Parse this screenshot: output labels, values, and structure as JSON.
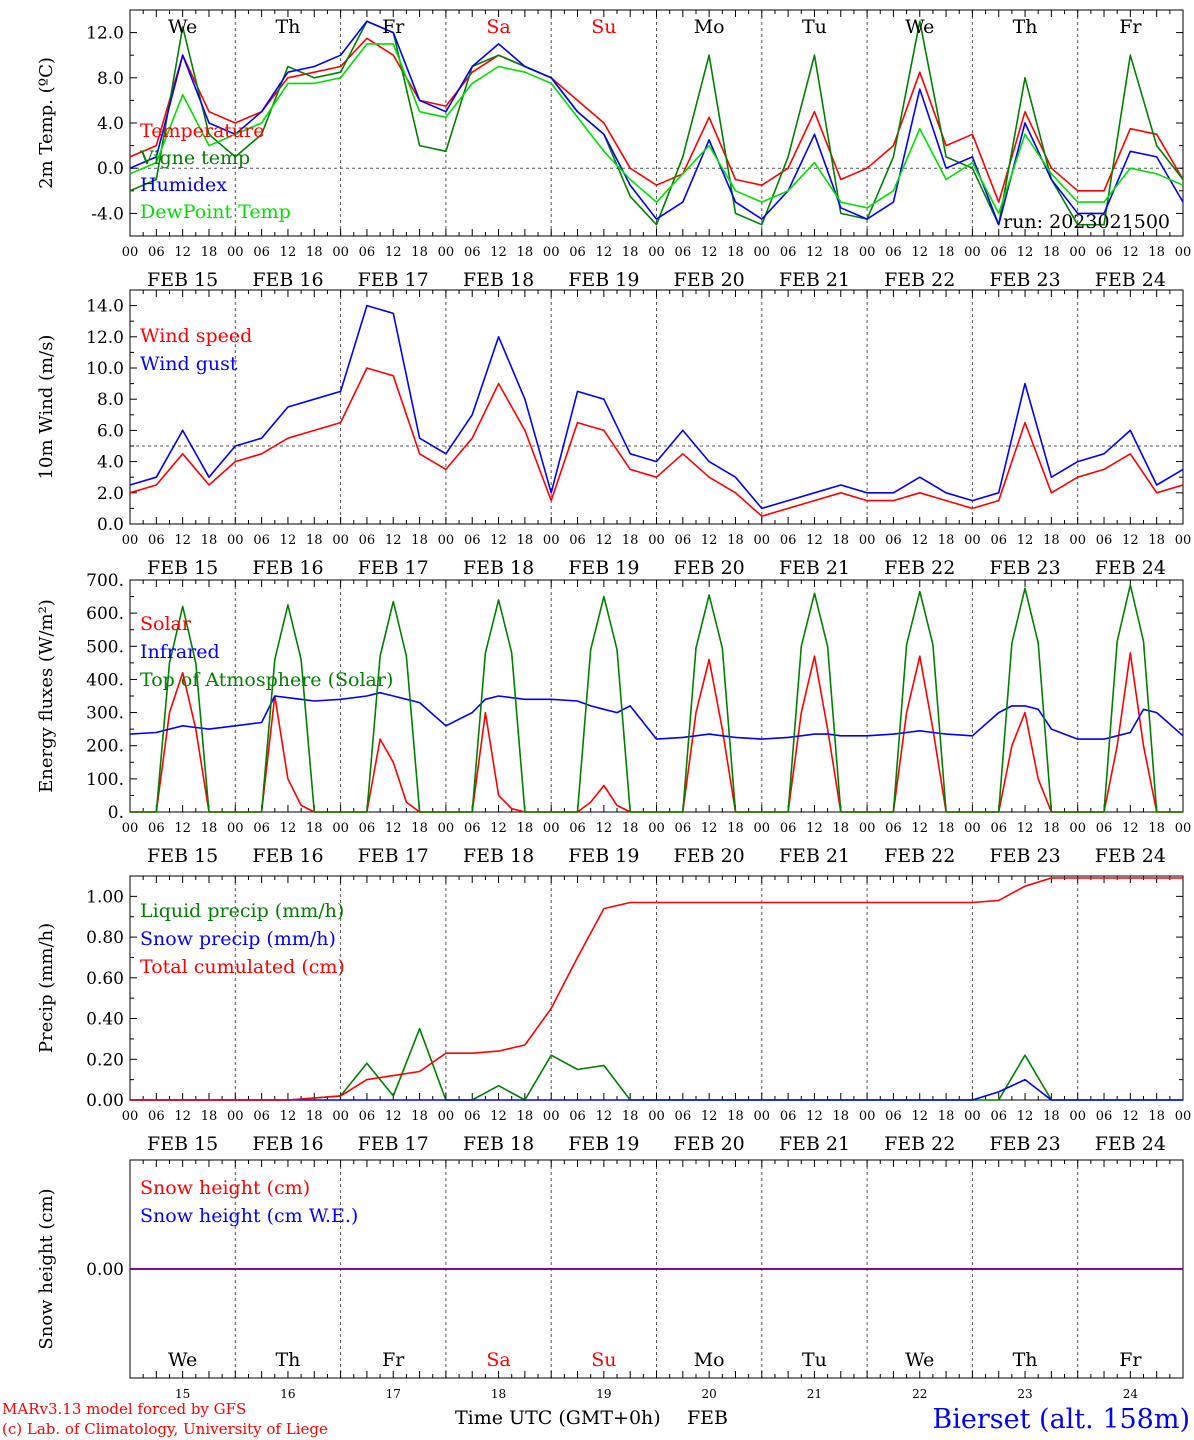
{
  "station": "Bierset (alt. 158m)",
  "run_label": "run: 2023021500",
  "footer": {
    "line1": "MARv3.13 model forced by GFS",
    "line2": "(c) Lab. of Climatology, University of Liege",
    "axis_title": "Time UTC (GMT+0h)",
    "month": "FEB"
  },
  "days": [
    {
      "date": "FEB 15",
      "num": "15",
      "dow": "We",
      "weekend": false
    },
    {
      "date": "FEB 16",
      "num": "16",
      "dow": "Th",
      "weekend": false
    },
    {
      "date": "FEB 17",
      "num": "17",
      "dow": "Fr",
      "weekend": false
    },
    {
      "date": "FEB 18",
      "num": "18",
      "dow": "Sa",
      "weekend": true
    },
    {
      "date": "FEB 19",
      "num": "19",
      "dow": "Su",
      "weekend": true
    },
    {
      "date": "FEB 20",
      "num": "20",
      "dow": "Mo",
      "weekend": false
    },
    {
      "date": "FEB 21",
      "num": "21",
      "dow": "Tu",
      "weekend": false
    },
    {
      "date": "FEB 22",
      "num": "22",
      "dow": "We",
      "weekend": false
    },
    {
      "date": "FEB 23",
      "num": "23",
      "dow": "Th",
      "weekend": false
    },
    {
      "date": "FEB 24",
      "num": "24",
      "dow": "Fr",
      "weekend": false
    }
  ],
  "hour_ticks": [
    "00",
    "06",
    "12",
    "18"
  ],
  "end_hour_tick": "00",
  "colors": {
    "red": "#ff0000",
    "green": "#008000",
    "blue": "#0000ff",
    "lightgreen": "#00e000",
    "purple": "#800080",
    "weekend": "#ff0000",
    "station": "#0000ff"
  },
  "chart_data": [
    {
      "type": "line",
      "ylabel": "2m Temp. (ºC)",
      "ylim": [
        -6,
        14
      ],
      "yticks": [
        -4,
        0,
        4,
        8,
        12
      ],
      "ytick_labels": [
        "-4.0",
        "0.0",
        "4.0",
        "8.0",
        "12.0"
      ],
      "ref_line": 0,
      "legend_placement": "left",
      "x": [
        0,
        6,
        12,
        18,
        24,
        30,
        36,
        42,
        48,
        54,
        60,
        66,
        72,
        78,
        84,
        90,
        96,
        102,
        108,
        114,
        120,
        126,
        132,
        138,
        144,
        150,
        156,
        162,
        168,
        174,
        180,
        186,
        192,
        198,
        204,
        210,
        216,
        222,
        228,
        234,
        240
      ],
      "series": [
        {
          "name": "Temperature",
          "color": "red",
          "values": [
            1,
            2,
            10,
            5,
            4,
            5,
            8,
            8.5,
            9,
            11.5,
            10,
            6,
            5.5,
            8.5,
            10,
            9,
            8,
            6,
            4,
            0,
            -1.5,
            -0.5,
            4.5,
            -1,
            -1.5,
            0,
            5,
            -1,
            0,
            2,
            8.5,
            2,
            3,
            -3,
            5,
            0,
            -2,
            -2,
            3.5,
            3,
            -1
          ]
        },
        {
          "name": "Vigne temp",
          "color": "green",
          "values": [
            -2,
            -1,
            12.5,
            3,
            1,
            3,
            9,
            8,
            8.5,
            13,
            12,
            2,
            1.5,
            9,
            10,
            9,
            8,
            5,
            3,
            -2.5,
            -5,
            1,
            10,
            -4,
            -5,
            1,
            10,
            -4,
            -4.5,
            1,
            13,
            1,
            0,
            -5,
            8,
            -1,
            -5,
            -5,
            10,
            2,
            -1
          ]
        },
        {
          "name": "Humidex",
          "color": "blue",
          "values": [
            0,
            1,
            10,
            4,
            3,
            5,
            8.5,
            9,
            10,
            13,
            12,
            6,
            5,
            9,
            11,
            9,
            8,
            5,
            3,
            -1.5,
            -4.5,
            -3,
            2.5,
            -3,
            -4.5,
            -2,
            3,
            -3.5,
            -4.5,
            -3,
            7,
            0,
            1,
            -5,
            4,
            -1,
            -4,
            -4,
            1.5,
            1,
            -3
          ]
        },
        {
          "name": "DewPoint Temp",
          "color": "lightgreen",
          "values": [
            -0.5,
            0.5,
            6.5,
            2,
            3,
            4,
            7.5,
            7.5,
            8,
            11,
            11,
            5,
            4.5,
            7.5,
            9,
            8.5,
            7.5,
            4.5,
            1.5,
            -1,
            -3,
            -0.5,
            2,
            -2,
            -3,
            -2,
            0.5,
            -3,
            -3.5,
            -2,
            3.5,
            -1,
            0.5,
            -4,
            3,
            -0.5,
            -3,
            -3,
            0,
            -0.5,
            -1.5
          ]
        }
      ]
    },
    {
      "type": "line",
      "ylabel": "10m Wind (m/s)",
      "ylim": [
        0,
        15
      ],
      "yticks": [
        0,
        2,
        4,
        6,
        8,
        10,
        12,
        14
      ],
      "ytick_labels": [
        "0.0",
        "2.0",
        "4.0",
        "6.0",
        "8.0",
        "10.0",
        "12.0",
        "14.0"
      ],
      "ref_line": 5,
      "legend_placement": "top-left",
      "x": [
        0,
        6,
        12,
        18,
        24,
        30,
        36,
        42,
        48,
        54,
        60,
        66,
        72,
        78,
        84,
        90,
        96,
        102,
        108,
        114,
        120,
        126,
        132,
        138,
        144,
        150,
        156,
        162,
        168,
        174,
        180,
        186,
        192,
        198,
        204,
        210,
        216,
        222,
        228,
        234,
        240
      ],
      "series": [
        {
          "name": "Wind speed",
          "color": "red",
          "values": [
            2,
            2.5,
            4.5,
            2.5,
            4,
            4.5,
            5.5,
            6,
            6.5,
            10,
            9.5,
            4.5,
            3.5,
            5.5,
            9,
            6,
            1.5,
            6.5,
            6,
            3.5,
            3,
            4.5,
            3,
            2,
            0.5,
            1,
            1.5,
            2,
            1.5,
            1.5,
            2,
            1.5,
            1,
            1.5,
            6.5,
            2,
            3,
            3.5,
            4.5,
            2,
            2.5
          ]
        },
        {
          "name": "Wind gust",
          "color": "blue",
          "values": [
            2.5,
            3,
            6,
            3,
            5,
            5.5,
            7.5,
            8,
            8.5,
            14,
            13.5,
            5.5,
            4.5,
            7,
            12,
            8,
            2,
            8.5,
            8,
            4.5,
            4,
            6,
            4,
            3,
            1,
            1.5,
            2,
            2.5,
            2,
            2,
            3,
            2,
            1.5,
            2,
            9,
            3,
            4,
            4.5,
            6,
            2.5,
            3.5
          ]
        }
      ]
    },
    {
      "type": "line",
      "ylabel": "Energy fluxes (W/m²)",
      "ylim": [
        0,
        700
      ],
      "yticks": [
        0,
        100,
        200,
        300,
        400,
        500,
        600,
        700
      ],
      "ytick_labels": [
        "0.",
        "100.",
        "200.",
        "300.",
        "400.",
        "500.",
        "600.",
        "700."
      ],
      "legend_placement": "top-left",
      "x": [
        0,
        6,
        9,
        12,
        15,
        18,
        24,
        30,
        33,
        36,
        39,
        42,
        48,
        54,
        57,
        60,
        63,
        66,
        72,
        78,
        81,
        84,
        87,
        90,
        96,
        102,
        105,
        108,
        111,
        114,
        120,
        126,
        129,
        132,
        135,
        138,
        144,
        150,
        153,
        156,
        159,
        162,
        168,
        174,
        177,
        180,
        183,
        186,
        192,
        198,
        201,
        204,
        207,
        210,
        216,
        222,
        225,
        228,
        231,
        234,
        240
      ],
      "series": [
        {
          "name": "Solar",
          "color": "red",
          "values": [
            0,
            0,
            300,
            420,
            250,
            0,
            0,
            0,
            350,
            100,
            20,
            0,
            0,
            0,
            220,
            150,
            30,
            0,
            0,
            0,
            300,
            50,
            10,
            0,
            0,
            0,
            30,
            80,
            20,
            0,
            0,
            0,
            300,
            460,
            250,
            0,
            0,
            0,
            300,
            470,
            250,
            0,
            0,
            0,
            300,
            470,
            250,
            0,
            0,
            0,
            200,
            300,
            100,
            0,
            0,
            0,
            200,
            480,
            200,
            0,
            0
          ]
        },
        {
          "name": "Infrared",
          "color": "blue",
          "values": [
            235,
            240,
            250,
            260,
            255,
            250,
            260,
            270,
            350,
            345,
            340,
            335,
            340,
            350,
            360,
            350,
            340,
            330,
            260,
            300,
            340,
            350,
            345,
            340,
            340,
            335,
            320,
            310,
            300,
            320,
            220,
            225,
            230,
            235,
            230,
            225,
            220,
            225,
            230,
            235,
            235,
            230,
            230,
            235,
            240,
            245,
            240,
            235,
            230,
            300,
            320,
            320,
            310,
            250,
            220,
            220,
            230,
            240,
            310,
            300,
            230
          ]
        },
        {
          "name": "Top of Atmosphere (Solar)",
          "color": "green",
          "values": [
            0,
            0,
            450,
            620,
            450,
            0,
            0,
            0,
            460,
            625,
            460,
            0,
            0,
            0,
            470,
            635,
            470,
            0,
            0,
            0,
            480,
            640,
            480,
            0,
            0,
            0,
            490,
            650,
            490,
            0,
            0,
            0,
            495,
            655,
            495,
            0,
            0,
            0,
            500,
            660,
            500,
            0,
            0,
            0,
            505,
            665,
            505,
            0,
            0,
            0,
            510,
            675,
            510,
            0,
            0,
            0,
            515,
            685,
            515,
            0,
            0
          ]
        }
      ]
    },
    {
      "type": "line",
      "ylabel": "Precip (mm/h)",
      "ylim": [
        0,
        1.1
      ],
      "yticks": [
        0,
        0.2,
        0.4,
        0.6,
        0.8,
        1.0
      ],
      "ytick_labels": [
        "0.00",
        "0.20",
        "0.40",
        "0.60",
        "0.80",
        "1.00"
      ],
      "legend_placement": "top-left",
      "x": [
        0,
        6,
        12,
        18,
        24,
        30,
        36,
        42,
        48,
        54,
        60,
        66,
        72,
        78,
        84,
        90,
        96,
        102,
        108,
        114,
        120,
        126,
        132,
        138,
        144,
        150,
        156,
        162,
        168,
        174,
        180,
        186,
        192,
        198,
        204,
        210,
        216,
        222,
        228,
        234,
        240
      ],
      "series": [
        {
          "name": "Liquid precip (mm/h)",
          "color": "green",
          "values": [
            0,
            0,
            0,
            0,
            0,
            0,
            0,
            0.01,
            0.02,
            0.18,
            0.02,
            0.35,
            0,
            0,
            0.07,
            0,
            0.22,
            0.15,
            0.17,
            0,
            0,
            0,
            0,
            0,
            0,
            0,
            0,
            0,
            0,
            0,
            0,
            0,
            0,
            0,
            0.22,
            0,
            0,
            0,
            0,
            0,
            0
          ]
        },
        {
          "name": "Snow precip (mm/h)",
          "color": "blue",
          "values": [
            0,
            0,
            0,
            0,
            0,
            0,
            0,
            0,
            0,
            0,
            0,
            0,
            0,
            0,
            0,
            0,
            0,
            0,
            0,
            0,
            0,
            0,
            0,
            0,
            0,
            0,
            0,
            0,
            0,
            0,
            0,
            0,
            0,
            0.04,
            0.1,
            0,
            0,
            0,
            0,
            0,
            0
          ]
        },
        {
          "name": "Total cumulated (cm)",
          "color": "red",
          "values": [
            0,
            0,
            0,
            0,
            0,
            0,
            0,
            0.01,
            0.02,
            0.1,
            0.12,
            0.14,
            0.23,
            0.23,
            0.24,
            0.27,
            0.45,
            0.7,
            0.94,
            0.97,
            0.97,
            0.97,
            0.97,
            0.97,
            0.97,
            0.97,
            0.97,
            0.97,
            0.97,
            0.97,
            0.97,
            0.97,
            0.97,
            0.98,
            1.05,
            1.09,
            1.09,
            1.09,
            1.09,
            1.09,
            1.09
          ]
        }
      ]
    },
    {
      "type": "line",
      "ylabel": "Snow height (cm)",
      "ylim": [
        -1,
        1
      ],
      "yticks": [
        0
      ],
      "ytick_labels": [
        "0.00"
      ],
      "legend_placement": "top-left",
      "x": [
        0,
        240
      ],
      "series": [
        {
          "name": "Snow height (cm)",
          "color": "red",
          "values": [
            0,
            0
          ]
        },
        {
          "name": "Snow height (cm W.E.)",
          "color": "blue",
          "values": [
            0,
            0
          ]
        }
      ]
    }
  ]
}
